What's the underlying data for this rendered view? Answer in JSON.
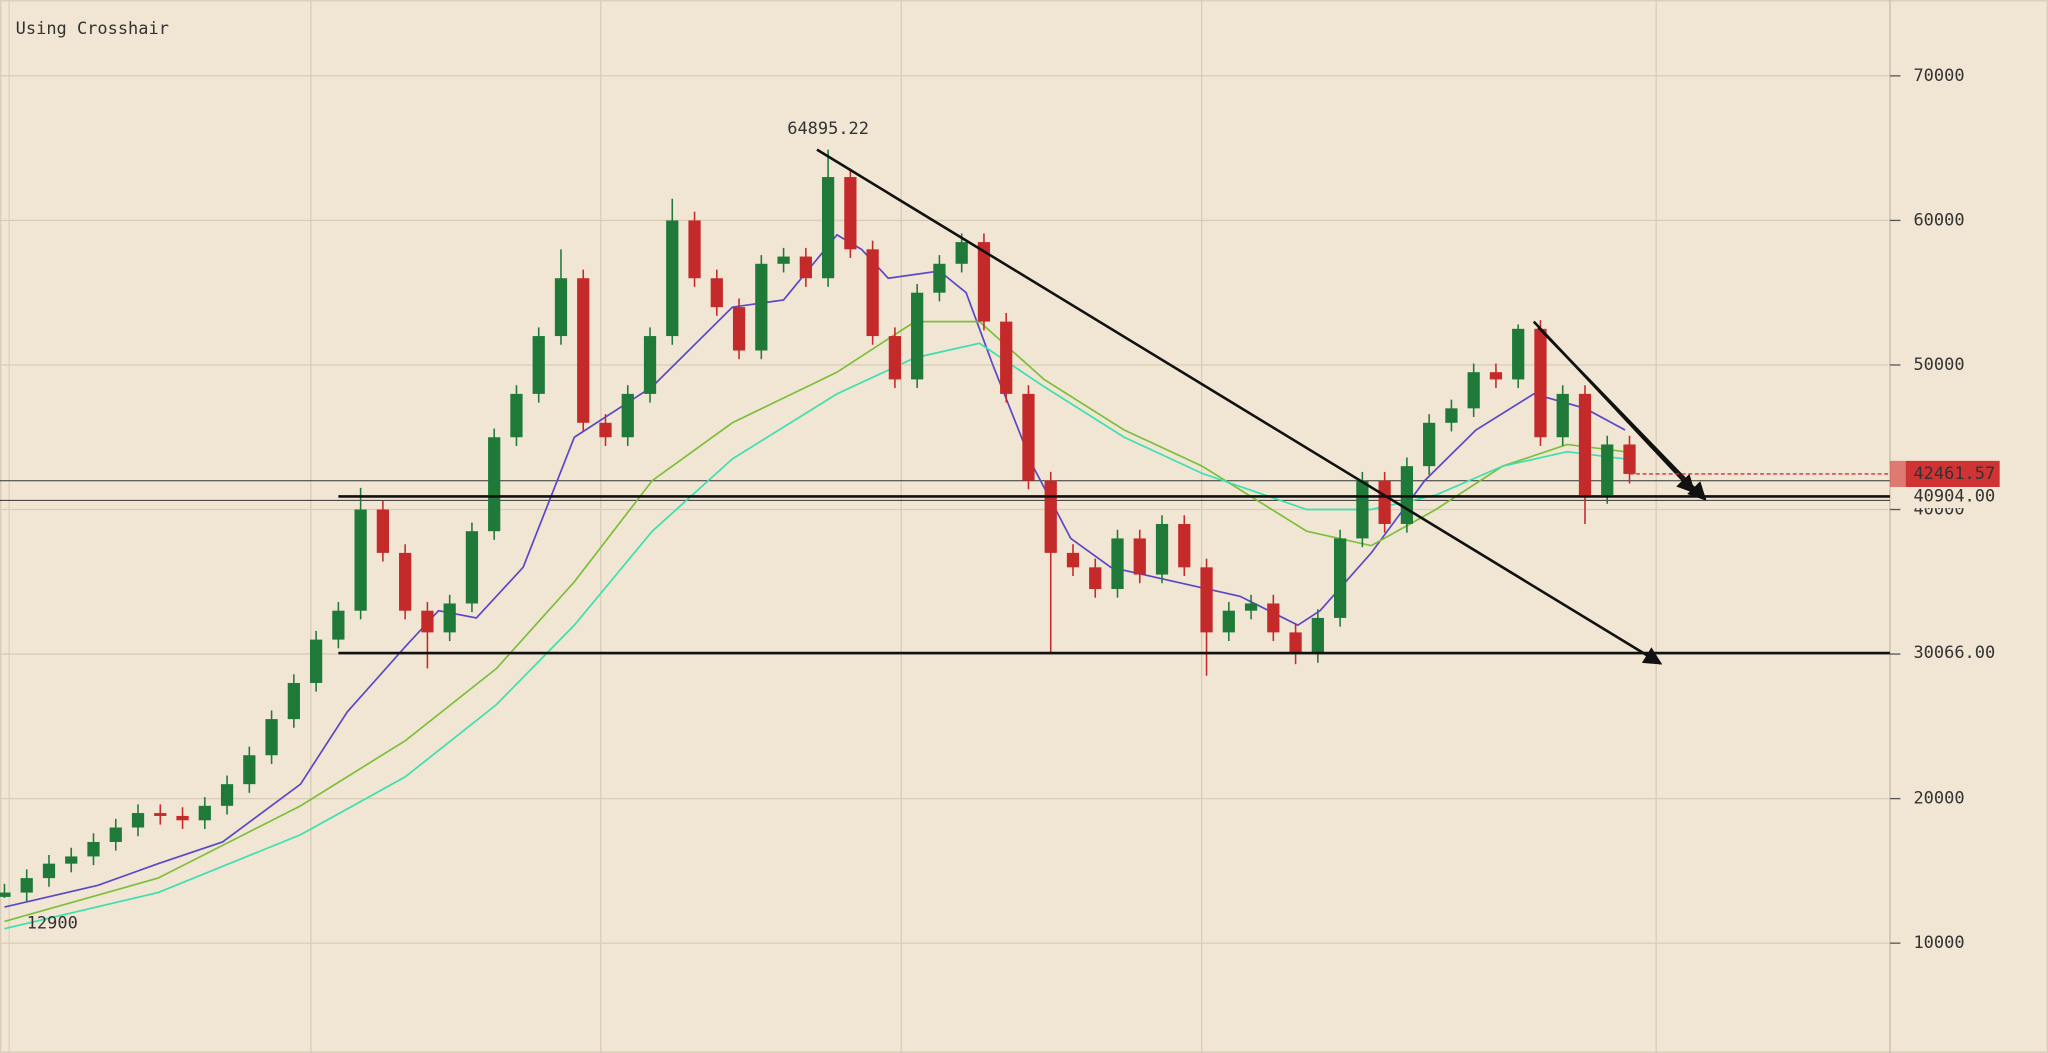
{
  "chart_data": {
    "type": "candlestick",
    "caption": "Using Crosshair",
    "x": [
      0,
      1,
      2,
      3,
      4,
      5,
      6,
      7,
      8,
      9,
      10,
      11,
      12,
      13,
      14,
      15,
      16,
      17,
      18,
      19,
      20,
      21,
      22,
      23,
      24,
      25,
      26,
      27,
      28,
      29,
      30,
      31,
      32,
      33,
      34,
      35,
      36,
      37,
      38,
      39,
      40,
      41,
      42,
      43,
      44,
      45,
      46,
      47,
      48,
      49,
      50,
      51,
      52,
      53,
      54,
      55,
      56,
      57,
      58,
      59,
      60,
      61,
      62,
      63,
      64,
      65,
      66,
      67,
      68,
      69,
      70,
      71,
      72,
      73
    ],
    "open": [
      13200,
      13500,
      14500,
      15500,
      16000,
      17000,
      18000,
      19000,
      18800,
      18500,
      19500,
      21000,
      23000,
      25500,
      28000,
      31000,
      33000,
      40000,
      37000,
      33000,
      31500,
      33500,
      38500,
      45000,
      48000,
      52000,
      56000,
      46000,
      45000,
      48000,
      52000,
      60000,
      56000,
      54000,
      51000,
      57000,
      57500,
      56000,
      63000,
      58000,
      52000,
      49000,
      55000,
      57000,
      58500,
      53000,
      48000,
      42000,
      37000,
      36000,
      34500,
      38000,
      35500,
      39000,
      36000,
      31500,
      33000,
      33500,
      31500,
      30000,
      32500,
      38000,
      42000,
      39000,
      43000,
      46000,
      47000,
      49500,
      49000,
      52500,
      45000,
      48000,
      41000,
      44500
    ],
    "high": [
      14100,
      15100,
      16100,
      16600,
      17600,
      18600,
      19600,
      19600,
      19400,
      20100,
      21600,
      23600,
      26100,
      28600,
      31600,
      33600,
      41500,
      40600,
      37600,
      33600,
      34100,
      39100,
      45600,
      48600,
      52600,
      58000,
      56600,
      46600,
      48600,
      52600,
      61500,
      60600,
      56600,
      54600,
      57600,
      58100,
      58100,
      64895.22,
      63600,
      58600,
      52600,
      55600,
      57600,
      59100,
      59100,
      53600,
      48600,
      42600,
      37600,
      36600,
      38600,
      38600,
      39600,
      39600,
      36600,
      33600,
      34100,
      34100,
      32100,
      33100,
      38600,
      42600,
      42600,
      43600,
      46600,
      47600,
      50100,
      50100,
      52800,
      53100,
      48600,
      48600,
      45100,
      45100
    ],
    "low": [
      13129.26,
      12900,
      13900,
      14900,
      15400,
      16400,
      17400,
      18200,
      17900,
      17900,
      18900,
      20400,
      22400,
      24900,
      27400,
      30400,
      32400,
      36400,
      32400,
      29000,
      30900,
      32900,
      37900,
      44400,
      47400,
      51400,
      45400,
      44400,
      44400,
      47400,
      51400,
      55400,
      53400,
      50400,
      50400,
      56400,
      55400,
      55400,
      57400,
      51400,
      48400,
      48400,
      54400,
      56400,
      52400,
      47400,
      41400,
      30000,
      35400,
      33900,
      33900,
      34900,
      34900,
      35400,
      28500,
      30900,
      32400,
      30900,
      29300,
      29400,
      31900,
      37400,
      38400,
      38400,
      42400,
      45400,
      46400,
      48400,
      48400,
      44400,
      44400,
      39000,
      40400,
      41800
    ],
    "close": [
      13500,
      14500,
      15500,
      16000,
      17000,
      18000,
      19000,
      18800,
      18500,
      19500,
      21000,
      23000,
      25500,
      28000,
      31000,
      33000,
      40000,
      37000,
      33000,
      31500,
      33500,
      38500,
      45000,
      48000,
      52000,
      56000,
      46000,
      45000,
      48000,
      52000,
      60000,
      56000,
      54000,
      51000,
      57000,
      57500,
      56000,
      63000,
      58000,
      52000,
      49000,
      55000,
      57000,
      58500,
      53000,
      48000,
      42000,
      37000,
      36000,
      34500,
      38000,
      35500,
      39000,
      36000,
      31500,
      33000,
      33500,
      31500,
      30000,
      32500,
      38000,
      42000,
      39000,
      43000,
      46000,
      47000,
      49500,
      49000,
      52500,
      45000,
      48000,
      41000,
      44500,
      42461.57
    ],
    "up_color": "#1f7a3a",
    "down_color": "#c42a2a",
    "series": [
      {
        "color": "#5a48c6",
        "x": [
          0,
          4.2,
          6.9,
          9.8,
          13.3,
          15.4,
          18,
          19.5,
          21.2,
          23.3,
          25.6,
          29.1,
          32.7,
          35,
          37.4,
          38.5,
          39.7,
          42,
          43.2,
          44.4,
          46.2,
          47.9,
          49.7,
          52.6,
          55.5,
          58.1,
          59.1,
          61.4,
          63.8,
          66.1,
          68.7,
          71,
          72.8
        ],
        "values": [
          12500,
          14000,
          15500,
          17000,
          21000,
          26000,
          30500,
          33000,
          32500,
          36000,
          45000,
          48500,
          54000,
          54500,
          59000,
          58000,
          56000,
          56500,
          55000,
          50000,
          43000,
          38000,
          36000,
          35000,
          34000,
          32000,
          33000,
          37000,
          42000,
          45500,
          48000,
          47000,
          45500
        ]
      },
      {
        "color": "#7cbf3c",
        "x": [
          0,
          6.9,
          13.3,
          18,
          22.1,
          25.6,
          29.1,
          32.7,
          37.4,
          40.9,
          43.8,
          46.7,
          50.3,
          53.8,
          58.5,
          61.4,
          64.3,
          67.3,
          70.2,
          72.8
        ],
        "values": [
          11500,
          14500,
          19500,
          24000,
          29000,
          35000,
          42000,
          46000,
          49500,
          53000,
          53000,
          49000,
          45500,
          43000,
          38500,
          37500,
          40000,
          43000,
          44500,
          44000
        ]
      },
      {
        "color": "#3ddfae",
        "x": [
          0,
          6.9,
          13.3,
          18,
          22.1,
          25.6,
          29.1,
          32.7,
          37.4,
          40.9,
          43.8,
          46.7,
          50.3,
          53.8,
          58.5,
          61.4,
          64.3,
          67.3,
          70.2,
          72.8
        ],
        "values": [
          11000,
          13500,
          17500,
          21500,
          26500,
          32000,
          38500,
          43500,
          48000,
          50500,
          51500,
          48500,
          45000,
          42500,
          40000,
          40000,
          41000,
          43000,
          44000,
          43500
        ]
      }
    ],
    "trendlines": [
      {
        "x": [
          36.5,
          74.4
        ],
        "values": [
          64895.22,
          29340
        ]
      },
      {
        "x": [
          68.9,
          76.4
        ],
        "values": [
          52600,
          40700
        ]
      },
      {
        "x": [
          68.7,
          75.9
        ],
        "values": [
          53000,
          41200
        ]
      }
    ],
    "levels": [
      {
        "from": 15,
        "value": 40904,
        "label": "40904.00"
      },
      {
        "from": 15,
        "value": 30066,
        "label": "30066.00"
      }
    ],
    "guide_lines": [
      41990,
      40630
    ],
    "last_color": "#d03333",
    "xlim": [
      -0.2,
      84.7
    ],
    "ylim": [
      2410,
      75240
    ],
    "yticks": [
      10000,
      20000,
      30000,
      40000,
      50000,
      60000,
      70000
    ],
    "grid": true
  }
}
